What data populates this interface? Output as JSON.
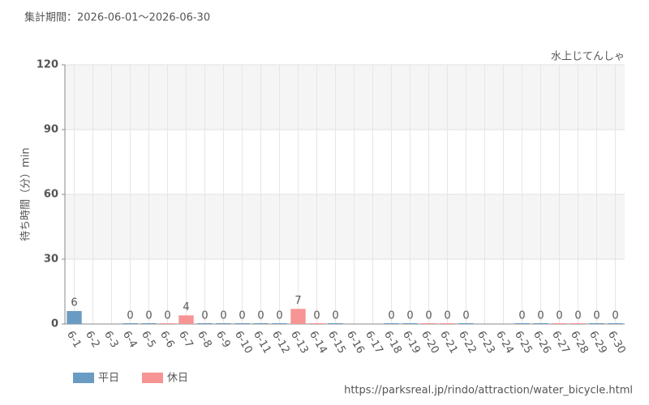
{
  "chart_data": {
    "type": "bar",
    "subtitle": "集計期間：2026-06-01～2026-06-30",
    "title": "水上じてんしゃ",
    "y_label": "待ち時間（分）min",
    "source": "https://parksreal.jp/rindo/attraction/water_bicycle.html",
    "categories": [
      "6-1",
      "6-2",
      "6-3",
      "6-4",
      "6-5",
      "6-6",
      "6-7",
      "6-8",
      "6-9",
      "6-10",
      "6-11",
      "6-12",
      "6-13",
      "6-14",
      "6-15",
      "6-16",
      "6-17",
      "6-18",
      "6-19",
      "6-20",
      "6-21",
      "6-22",
      "6-23",
      "6-24",
      "6-25",
      "6-26",
      "6-27",
      "6-28",
      "6-29",
      "6-30"
    ],
    "series": [
      {
        "name": "平日",
        "color": "#6a9bc3",
        "values": [
          6,
          null,
          null,
          0,
          0,
          null,
          null,
          0,
          0,
          0,
          0,
          0,
          null,
          null,
          0,
          null,
          null,
          0,
          0,
          null,
          null,
          0,
          null,
          null,
          0,
          0,
          null,
          null,
          0,
          0
        ]
      },
      {
        "name": "休日",
        "color": "#f79494",
        "values": [
          null,
          null,
          null,
          null,
          null,
          0,
          4,
          null,
          null,
          null,
          null,
          null,
          7,
          0,
          null,
          null,
          null,
          null,
          null,
          0,
          0,
          null,
          null,
          null,
          null,
          null,
          0,
          0,
          null,
          null
        ]
      }
    ],
    "ylim": [
      0,
      120
    ],
    "yticks": [
      0,
      30,
      60,
      90,
      120
    ],
    "grid": true
  }
}
